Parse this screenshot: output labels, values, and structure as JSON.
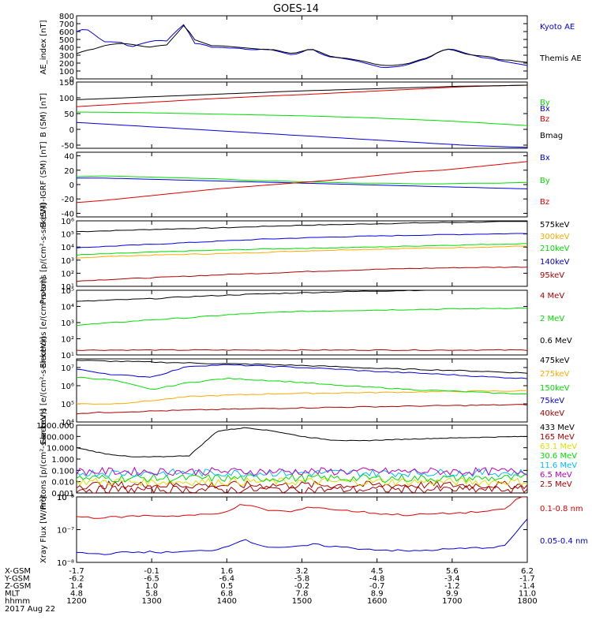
{
  "title": "GOES-14",
  "colors": {
    "black": "#000000",
    "blue": "#0000dd",
    "red": "#dd0000",
    "green": "#00dd00",
    "orange": "#ffaa00",
    "cyan": "#00bbff",
    "yellow": "#dddd00",
    "purple": "#bb00bb",
    "darkred": "#aa0000"
  },
  "chart_data": [
    {
      "type": "line",
      "ylabel": "AE_index [nT]",
      "ylim": [
        0,
        800
      ],
      "yticks": [
        "0",
        "100",
        "200",
        "300",
        "400",
        "500",
        "600",
        "700",
        "800"
      ],
      "series": [
        {
          "name": "Kyoto AE",
          "color": "blue",
          "y": [
            600,
            640,
            560,
            470,
            470,
            460,
            400,
            440,
            470,
            490,
            480,
            600,
            700,
            450,
            440,
            400,
            400,
            390,
            390,
            370,
            370,
            380,
            360,
            330,
            300,
            340,
            390,
            320,
            280,
            270,
            250,
            230,
            200,
            170,
            140,
            150,
            160,
            190,
            230,
            260,
            330,
            380,
            370,
            330,
            300,
            270,
            260,
            230,
            210,
            190,
            170
          ]
        },
        {
          "name": "Themis AE",
          "color": "black",
          "y": [
            320,
            360,
            380,
            420,
            440,
            450,
            440,
            420,
            400,
            420,
            430,
            560,
            690,
            500,
            460,
            420,
            420,
            410,
            400,
            390,
            380,
            370,
            370,
            340,
            320,
            350,
            380,
            340,
            290,
            270,
            260,
            240,
            220,
            190,
            170,
            170,
            180,
            200,
            240,
            270,
            330,
            380,
            360,
            320,
            300,
            290,
            280,
            240,
            240,
            220,
            210
          ]
        }
      ]
    },
    {
      "type": "line",
      "ylabel": "B (SM) [nT]",
      "ylim": [
        -60,
        150
      ],
      "yticks": [
        "-50",
        "0",
        "50",
        "100",
        "150"
      ],
      "series": [
        {
          "name": "Bx",
          "color": "blue",
          "y": [
            22,
            16,
            10,
            4,
            -2,
            -8,
            -14,
            -20,
            -26,
            -32,
            -38,
            -44,
            -50,
            -54,
            -57
          ]
        },
        {
          "name": "By",
          "color": "green",
          "y": [
            55,
            54,
            53,
            51,
            49,
            47,
            45,
            43,
            40,
            37,
            33,
            29,
            24,
            18,
            12
          ]
        },
        {
          "name": "Bz",
          "color": "red",
          "y": [
            72,
            78,
            84,
            90,
            96,
            101,
            106,
            110,
            115,
            120,
            125,
            130,
            135,
            138,
            140
          ]
        },
        {
          "name": "Bmag",
          "color": "black",
          "y": [
            94,
            98,
            102,
            106,
            110,
            114,
            118,
            122,
            125,
            128,
            131,
            134,
            137,
            138,
            140
          ]
        }
      ]
    },
    {
      "type": "line",
      "ylabel": "B (SM)-IGRF (SM) [nT]",
      "ylim": [
        -45,
        45
      ],
      "yticks": [
        "-40",
        "-20",
        "0",
        "20",
        "40"
      ],
      "series": [
        {
          "name": "Bx",
          "color": "blue",
          "y": [
            9,
            9,
            8,
            7,
            6,
            5,
            4,
            3,
            2,
            1,
            0,
            -1,
            -2,
            -3,
            -4,
            -5,
            -6
          ]
        },
        {
          "name": "By",
          "color": "green",
          "y": [
            11,
            12,
            11,
            10,
            9,
            8,
            6,
            5,
            4,
            3,
            2,
            2,
            1,
            1,
            2,
            2,
            3
          ]
        },
        {
          "name": "Bz",
          "color": "red",
          "y": [
            -25,
            -22,
            -18,
            -14,
            -10,
            -6,
            -3,
            0,
            3,
            6,
            10,
            14,
            18,
            20,
            24,
            28,
            32
          ]
        }
      ]
    },
    {
      "type": "line",
      "ylabel": "Protons [p/(cm²-s-sr-keV)]",
      "yscale": "log",
      "ylim": [
        10,
        1000000
      ],
      "yticks": [
        "10¹",
        "10²",
        "10³",
        "10⁴",
        "10⁵",
        "10⁶"
      ],
      "series": [
        {
          "name": "575keV",
          "color": "black",
          "y": [
            150000,
            180000,
            220000,
            260000,
            300000,
            380000,
            460000,
            520000,
            600000,
            680000,
            760000,
            820000,
            900000
          ]
        },
        {
          "name": "300keV",
          "color": "orange",
          "y": [
            1500,
            2000,
            2400,
            2800,
            3200,
            4000,
            5000,
            6000,
            7000,
            8000,
            9000,
            10000,
            12000
          ]
        },
        {
          "name": "210keV",
          "color": "green",
          "y": [
            2500,
            3200,
            4000,
            5000,
            6000,
            7000,
            8000,
            9000,
            10000,
            12000,
            14000,
            16000,
            18000
          ]
        },
        {
          "name": "140keV",
          "color": "blue",
          "y": [
            9000,
            12000,
            16000,
            22000,
            30000,
            40000,
            50000,
            60000,
            70000,
            80000,
            90000,
            100000,
            110000
          ]
        },
        {
          "name": "95keV",
          "color": "darkred",
          "y": [
            25,
            35,
            45,
            60,
            80,
            100,
            130,
            160,
            200,
            230,
            260,
            280,
            300
          ]
        }
      ]
    },
    {
      "type": "line",
      "ylabel": "Electrons [e/(cm²-s-sr)]",
      "yscale": "log",
      "ylim": [
        10,
        100000
      ],
      "yticks": [
        "10¹",
        "10²",
        "10³",
        "10⁴",
        "10⁵"
      ],
      "series": [
        {
          "name": "4 MeV",
          "color": "darkred",
          "y": [
            20,
            20,
            20,
            20,
            20,
            20,
            20,
            20,
            20,
            20,
            20,
            20,
            20
          ]
        },
        {
          "name": "2 MeV",
          "color": "green",
          "y": [
            700,
            1000,
            1500,
            2000,
            3000,
            4000,
            5000,
            5500,
            6000,
            6500,
            7000,
            7500,
            8000
          ]
        },
        {
          "name": "0.6 MeV",
          "color": "black",
          "y": [
            20000,
            25000,
            30000,
            40000,
            50000,
            60000,
            70000,
            80000,
            90000,
            100000,
            110000,
            120000,
            130000
          ]
        }
      ]
    },
    {
      "type": "line",
      "ylabel": "Electrons [e/(cm²-s-sr-keV)]",
      "yscale": "log",
      "ylim": [
        10000,
        30000000
      ],
      "yticks": [
        "10⁴",
        "10⁵",
        "10⁶",
        "10⁷"
      ],
      "series": [
        {
          "name": "475keV",
          "color": "black",
          "y": [
            25000000,
            22000000,
            20000000,
            18000000,
            16000000,
            15000000,
            13000000,
            11000000,
            9000000,
            8000000,
            7000000,
            6000000,
            5000000
          ]
        },
        {
          "name": "275keV",
          "color": "orange",
          "y": [
            100000,
            100000,
            150000,
            250000,
            300000,
            350000,
            380000,
            400000,
            420000,
            450000,
            480000,
            500000,
            520000
          ]
        },
        {
          "name": "150keV",
          "color": "green",
          "y": [
            3000000,
            2000000,
            600000,
            1500000,
            2500000,
            2000000,
            1500000,
            1000000,
            800000,
            600000,
            500000,
            400000,
            350000
          ]
        },
        {
          "name": "75keV",
          "color": "blue",
          "y": [
            8000000,
            4000000,
            3000000,
            12000000,
            14000000,
            12000000,
            10000000,
            8000000,
            6000000,
            5000000,
            4000000,
            3000000,
            2500000
          ]
        },
        {
          "name": "40keV",
          "color": "darkred",
          "y": [
            30000,
            35000,
            40000,
            45000,
            50000,
            55000,
            60000,
            65000,
            70000,
            75000,
            80000,
            85000,
            90000
          ]
        }
      ]
    },
    {
      "type": "line",
      "ylabel": "Protons [p/(cm²-s-sr-keV)]",
      "yscale": "log",
      "ylim": [
        0.001,
        1000
      ],
      "yticks": [
        "0.001",
        "0.010",
        "0.100",
        "1.000",
        "10.000",
        "100.000",
        "1000.000"
      ],
      "series": [
        {
          "name": "433 MeV",
          "color": "black",
          "y": [
            10,
            3,
            1.5,
            1.6,
            2,
            300,
            600,
            300,
            100,
            50,
            40,
            50,
            60,
            70,
            80,
            90,
            100
          ]
        },
        {
          "name": "165 MeV",
          "color": "darkred",
          "y": [
            0.005,
            0.005,
            0.005,
            0.005,
            0.005,
            0.005,
            0.005,
            0.005,
            0.005,
            0.005,
            0.005,
            0.005,
            0.005,
            0.005,
            0.005,
            0.005,
            0.005
          ]
        },
        {
          "name": "63.1 MeV",
          "color": "yellow",
          "y": [
            0.01,
            0.01,
            0.01,
            0.01,
            0.01,
            0.01,
            0.01,
            0.01,
            0.01,
            0.01,
            0.01,
            0.01,
            0.01,
            0.01,
            0.01,
            0.01,
            0.01
          ]
        },
        {
          "name": "30.6 MeV",
          "color": "green",
          "y": [
            0.02,
            0.02,
            0.02,
            0.02,
            0.02,
            0.02,
            0.02,
            0.02,
            0.02,
            0.02,
            0.02,
            0.02,
            0.02,
            0.02,
            0.02,
            0.02,
            0.02
          ]
        },
        {
          "name": "11.6 MeV",
          "color": "cyan",
          "y": [
            0.06,
            0.06,
            0.06,
            0.06,
            0.06,
            0.06,
            0.06,
            0.06,
            0.06,
            0.06,
            0.06,
            0.06,
            0.06,
            0.06,
            0.06,
            0.06,
            0.06
          ]
        },
        {
          "name": "6.5 MeV",
          "color": "purple",
          "y": [
            0.08,
            0.08,
            0.08,
            0.08,
            0.08,
            0.08,
            0.08,
            0.08,
            0.08,
            0.08,
            0.08,
            0.08,
            0.08,
            0.08,
            0.08,
            0.08,
            0.08
          ]
        },
        {
          "name": "2.5 MeV",
          "color": "darkred",
          "y": [
            0.002,
            0.002,
            0.002,
            0.002,
            0.002,
            0.002,
            0.002,
            0.002,
            0.002,
            0.002,
            0.002,
            0.002,
            0.002,
            0.002,
            0.002,
            0.002,
            0.002
          ]
        }
      ]
    },
    {
      "type": "line",
      "ylabel": "Xray Flux [W/m²]",
      "yscale": "log",
      "ylim": [
        1e-08,
        1e-06
      ],
      "yticks": [
        "10⁻⁸",
        "10⁻⁷",
        "10⁻⁶",
        "10⁻⁵"
      ],
      "series": [
        {
          "name": "0.1-0.8 nm",
          "color": "red",
          "y": [
            2.5e-07,
            2.3e-07,
            2.5e-07,
            2.7e-07,
            2.6e-07,
            2.8e-07,
            3e-07,
            6e-07,
            4e-07,
            3.5e-07,
            5e-07,
            4e-07,
            3.5e-07,
            3e-07,
            2.8e-07,
            3e-07,
            3.2e-07,
            3.5e-07,
            4e-07,
            1.5e-06
          ]
        },
        {
          "name": "0.05-0.4 nm",
          "color": "blue",
          "y": [
            2e-08,
            1.8e-08,
            2e-08,
            2.1e-08,
            2e-08,
            2.2e-08,
            2.5e-08,
            5e-08,
            3e-08,
            2.8e-08,
            3.5e-08,
            3e-08,
            2.6e-08,
            2.4e-08,
            2.2e-08,
            2.4e-08,
            2.6e-08,
            2.8e-08,
            3e-08,
            2e-07
          ]
        }
      ]
    }
  ],
  "xaxis": {
    "rows": [
      {
        "label": "X-GSM",
        "values": [
          "-1.7",
          "-0.1",
          "1.6",
          "3.2",
          "4.5",
          "5.6",
          "6.2"
        ]
      },
      {
        "label": "Y-GSM",
        "values": [
          "-6.2",
          "-6.5",
          "-6.4",
          "-5.8",
          "-4.8",
          "-3.4",
          "-1.7"
        ]
      },
      {
        "label": "Z-GSM",
        "values": [
          "1.4",
          "1.0",
          "0.5",
          "-0.2",
          "-0.7",
          "-1.2",
          "-1.4"
        ]
      },
      {
        "label": "MLT",
        "values": [
          "4.8",
          "5.8",
          "6.8",
          "7.8",
          "8.9",
          "9.9",
          "11.0"
        ]
      },
      {
        "label": "hhmm",
        "values": [
          "1200",
          "1300",
          "1400",
          "1500",
          "1600",
          "1700",
          "1800"
        ]
      }
    ],
    "date": "2017 Aug 22"
  }
}
